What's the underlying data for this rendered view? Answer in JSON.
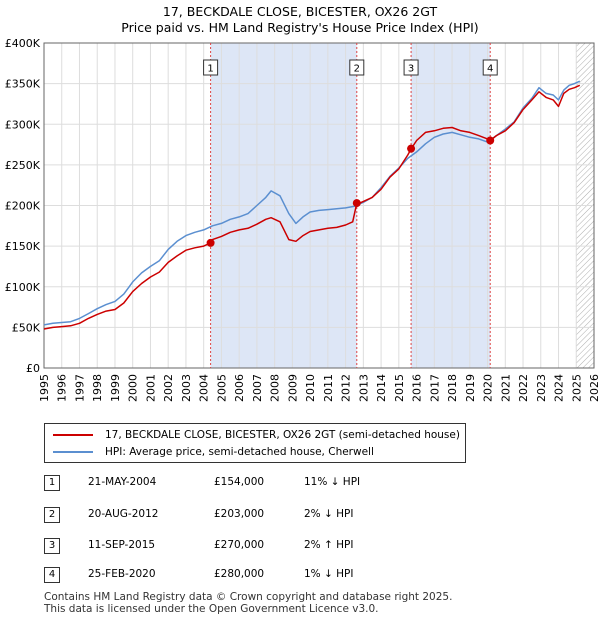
{
  "chart_data": {
    "type": "line",
    "title": "17, BECKDALE CLOSE, BICESTER, OX26 2GT",
    "subtitle": "Price paid vs. HM Land Registry's House Price Index (HPI)",
    "xlabel": "",
    "ylabel": "",
    "xlim": [
      1995,
      2026
    ],
    "ylim": [
      0,
      400000
    ],
    "x_ticks": [
      "1995",
      "1996",
      "1997",
      "1998",
      "1999",
      "2000",
      "2001",
      "2002",
      "2003",
      "2004",
      "2005",
      "2006",
      "2007",
      "2008",
      "2009",
      "2010",
      "2011",
      "2012",
      "2013",
      "2014",
      "2015",
      "2016",
      "2017",
      "2018",
      "2019",
      "2020",
      "2021",
      "2022",
      "2023",
      "2024",
      "2025",
      "2026"
    ],
    "y_ticks": [
      "£0",
      "£50K",
      "£100K",
      "£150K",
      "£200K",
      "£250K",
      "£300K",
      "£350K",
      "£400K"
    ],
    "y_tick_values": [
      0,
      50000,
      100000,
      150000,
      200000,
      250000,
      300000,
      350000,
      400000
    ],
    "grid": true,
    "legend_position": "below",
    "series": [
      {
        "name": "17, BECKDALE CLOSE, BICESTER, OX26 2GT (semi-detached house)",
        "color": "#cc0000",
        "x": [
          1995.0,
          1995.5,
          1996.0,
          1996.5,
          1997.0,
          1997.5,
          1998.0,
          1998.5,
          1999.0,
          1999.5,
          2000.0,
          2000.5,
          2001.0,
          2001.5,
          2002.0,
          2002.5,
          2003.0,
          2003.5,
          2004.0,
          2004.39,
          2004.5,
          2005.0,
          2005.5,
          2006.0,
          2006.5,
          2007.0,
          2007.5,
          2007.8,
          2008.3,
          2008.8,
          2009.2,
          2009.6,
          2010.0,
          2010.5,
          2011.0,
          2011.5,
          2012.0,
          2012.4,
          2012.63,
          2012.8,
          2013.0,
          2013.5,
          2014.0,
          2014.5,
          2015.0,
          2015.5,
          2015.7,
          2016.0,
          2016.5,
          2017.0,
          2017.5,
          2018.0,
          2018.5,
          2019.0,
          2019.5,
          2020.0,
          2020.15,
          2020.5,
          2021.0,
          2021.5,
          2022.0,
          2022.5,
          2022.9,
          2023.3,
          2023.7,
          2024.0,
          2024.3,
          2024.6,
          2024.9,
          2025.2
        ],
        "values": [
          48000,
          50000,
          51000,
          52000,
          55000,
          61000,
          66000,
          70000,
          72000,
          80000,
          94000,
          104000,
          112000,
          118000,
          130000,
          138000,
          145000,
          148000,
          150000,
          154000,
          158000,
          162000,
          167000,
          170000,
          172000,
          177000,
          183000,
          185000,
          180000,
          158000,
          156000,
          163000,
          168000,
          170000,
          172000,
          173000,
          176000,
          180000,
          203000,
          203000,
          205000,
          210000,
          220000,
          235000,
          245000,
          262000,
          270000,
          280000,
          290000,
          292000,
          295000,
          296000,
          292000,
          290000,
          286000,
          282000,
          280000,
          286000,
          292000,
          302000,
          318000,
          330000,
          340000,
          333000,
          330000,
          322000,
          338000,
          343000,
          345000,
          348000
        ]
      },
      {
        "name": "HPI: Average price, semi-detached house, Cherwell",
        "color": "#5b8fd0",
        "x": [
          1995.0,
          1995.5,
          1996.0,
          1996.5,
          1997.0,
          1997.5,
          1998.0,
          1998.5,
          1999.0,
          1999.5,
          2000.0,
          2000.5,
          2001.0,
          2001.5,
          2002.0,
          2002.5,
          2003.0,
          2003.5,
          2004.0,
          2004.5,
          2005.0,
          2005.5,
          2006.0,
          2006.5,
          2007.0,
          2007.5,
          2007.8,
          2008.3,
          2008.8,
          2009.2,
          2009.6,
          2010.0,
          2010.5,
          2011.0,
          2011.5,
          2012.0,
          2012.5,
          2013.0,
          2013.5,
          2014.0,
          2014.5,
          2015.0,
          2015.5,
          2016.0,
          2016.5,
          2017.0,
          2017.5,
          2018.0,
          2018.5,
          2019.0,
          2019.5,
          2020.0,
          2020.5,
          2021.0,
          2021.5,
          2022.0,
          2022.5,
          2022.9,
          2023.3,
          2023.7,
          2024.0,
          2024.3,
          2024.6,
          2024.9,
          2025.2
        ],
        "values": [
          53000,
          55000,
          56000,
          57000,
          61000,
          67000,
          73000,
          78000,
          82000,
          91000,
          106000,
          117000,
          125000,
          132000,
          146000,
          156000,
          163000,
          167000,
          170000,
          175000,
          178000,
          183000,
          186000,
          190000,
          200000,
          210000,
          218000,
          212000,
          190000,
          178000,
          186000,
          192000,
          194000,
          195000,
          196000,
          197000,
          199000,
          204000,
          210000,
          222000,
          236000,
          246000,
          258000,
          266000,
          276000,
          284000,
          288000,
          290000,
          287000,
          284000,
          282000,
          278000,
          286000,
          294000,
          303000,
          320000,
          332000,
          345000,
          338000,
          336000,
          330000,
          342000,
          348000,
          350000,
          353000
        ]
      }
    ],
    "transactions_x": [
      2004.39,
      2012.63,
      2015.69,
      2020.15
    ],
    "transactions_y": [
      154000,
      203000,
      270000,
      280000
    ],
    "transaction_labels": [
      "1",
      "2",
      "3",
      "4"
    ],
    "shade_ranges": [
      [
        2004.39,
        2012.63
      ],
      [
        2015.69,
        2020.15
      ]
    ],
    "hatch_from": 2025.0
  },
  "legend": {
    "property_label": "17, BECKDALE CLOSE, BICESTER, OX26 2GT (semi-detached house)",
    "hpi_label": "HPI: Average price, semi-detached house, Cherwell"
  },
  "transactions": [
    {
      "num": "1",
      "date": "21-MAY-2004",
      "price": "£154,000",
      "hpi": "11% ↓ HPI"
    },
    {
      "num": "2",
      "date": "20-AUG-2012",
      "price": "£203,000",
      "hpi": "2% ↓ HPI"
    },
    {
      "num": "3",
      "date": "11-SEP-2015",
      "price": "£270,000",
      "hpi": "2% ↑ HPI"
    },
    {
      "num": "4",
      "date": "25-FEB-2020",
      "price": "£280,000",
      "hpi": "1% ↓ HPI"
    }
  ],
  "footer": {
    "line1": "Contains HM Land Registry data © Crown copyright and database right 2025.",
    "line2": "This data is licensed under the Open Government Licence v3.0."
  },
  "colors": {
    "property": "#cc0000",
    "hpi": "#5b8fd0",
    "shade": "#dde6f6",
    "marker_line": "#dd4444",
    "grid": "#dddddd"
  }
}
